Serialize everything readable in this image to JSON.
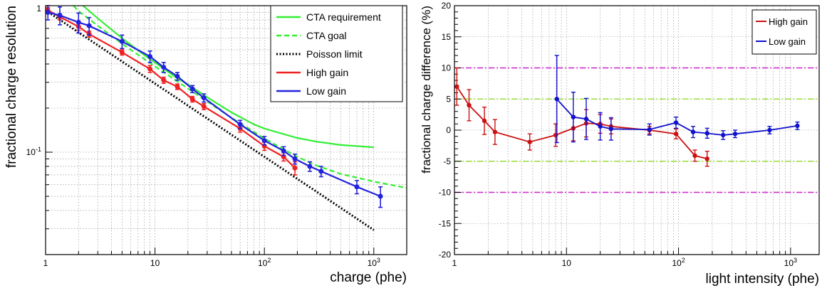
{
  "chart_data": [
    {
      "type": "line",
      "title": "",
      "xlabel": "charge (phe)",
      "ylabel": "fractional charge resolution",
      "xscale": "log",
      "yscale": "log",
      "xlim": [
        1,
        2000
      ],
      "ylim": [
        0.02,
        1
      ],
      "grid": true,
      "legend_position": "top-right",
      "x_tick_labels": [
        "1",
        "10",
        "10^2",
        "10^3"
      ],
      "y_tick_labels": [
        "10^-1",
        "1"
      ],
      "series": [
        {
          "name": "CTA requirement",
          "color": "#33ee33",
          "style": "solid",
          "x": [
            2.2,
            3,
            5,
            8,
            10,
            15,
            20,
            30,
            50,
            80,
            100,
            200,
            300,
            500,
            1000
          ],
          "y": [
            1.0,
            0.82,
            0.6,
            0.46,
            0.41,
            0.33,
            0.29,
            0.237,
            0.187,
            0.155,
            0.145,
            0.125,
            0.118,
            0.112,
            0.108
          ]
        },
        {
          "name": "CTA goal",
          "color": "#33ee33",
          "style": "dashed",
          "x": [
            1.8,
            2,
            3,
            5,
            10,
            20,
            30,
            50,
            100,
            200,
            300,
            500,
            1000,
            2000
          ],
          "y": [
            1.0,
            0.92,
            0.73,
            0.55,
            0.385,
            0.272,
            0.222,
            0.172,
            0.124,
            0.093,
            0.081,
            0.071,
            0.063,
            0.057
          ]
        },
        {
          "name": "Poisson limit",
          "color": "#000000",
          "style": "dotted",
          "x": [
            1,
            1000
          ],
          "y": [
            0.93,
            0.0294
          ]
        },
        {
          "name": "High gain",
          "color": "#ee2222",
          "style": "solid",
          "x": [
            1.05,
            1.35,
            2,
            2.5,
            5,
            9,
            12,
            16,
            22,
            28,
            60,
            100,
            150,
            190
          ],
          "y": [
            0.93,
            0.84,
            0.72,
            0.64,
            0.48,
            0.37,
            0.31,
            0.28,
            0.23,
            0.205,
            0.145,
            0.11,
            0.093,
            0.078
          ],
          "err": [
            0.04,
            0.04,
            0.04,
            0.03,
            0.02,
            0.02,
            0.015,
            0.012,
            0.01,
            0.01,
            0.008,
            0.007,
            0.006,
            0.008
          ]
        },
        {
          "name": "Low gain",
          "color": "#2222dd",
          "style": "solid",
          "x": [
            1.05,
            1.35,
            2,
            2.5,
            5,
            9,
            12,
            16,
            22,
            28,
            60,
            100,
            150,
            190,
            260,
            330,
            700,
            1150
          ],
          "y": [
            0.9,
            0.86,
            0.77,
            0.73,
            0.57,
            0.45,
            0.38,
            0.33,
            0.27,
            0.235,
            0.155,
            0.12,
            0.102,
            0.09,
            0.08,
            0.074,
            0.058,
            0.05
          ],
          "err": [
            0.1,
            0.12,
            0.12,
            0.1,
            0.06,
            0.04,
            0.03,
            0.02,
            0.015,
            0.015,
            0.01,
            0.008,
            0.007,
            0.007,
            0.006,
            0.006,
            0.006,
            0.008
          ]
        }
      ]
    },
    {
      "type": "line",
      "title": "",
      "xlabel": "light intensity (phe)",
      "ylabel": "fractional charge difference (%)",
      "xscale": "log",
      "yscale": "linear",
      "xlim": [
        1,
        1800
      ],
      "ylim": [
        -20,
        20
      ],
      "grid": true,
      "legend_position": "top-right",
      "x_tick_labels": [
        "1",
        "10",
        "10^2",
        "10^3"
      ],
      "y_ticks": [
        -20,
        -15,
        -10,
        -5,
        0,
        5,
        10,
        15,
        20
      ],
      "reference_lines": [
        {
          "y": 10,
          "color": "#cc22cc",
          "style": "dashdot"
        },
        {
          "y": -10,
          "color": "#cc22cc",
          "style": "dashdot"
        },
        {
          "y": 5,
          "color": "#99dd33",
          "style": "dashdot"
        },
        {
          "y": -5,
          "color": "#99dd33",
          "style": "dashdot"
        }
      ],
      "series": [
        {
          "name": "High gain",
          "color": "#cc1111",
          "style": "solid",
          "x": [
            1.05,
            1.35,
            1.85,
            2.3,
            4.7,
            8,
            11.5,
            15,
            20,
            25,
            55,
            95,
            140,
            180
          ],
          "y": [
            7,
            4,
            1.5,
            -0.3,
            -1.9,
            -0.8,
            0.3,
            1.1,
            1.0,
            0.6,
            0.0,
            -0.6,
            -4.1,
            -4.6
          ],
          "err": [
            3,
            2.5,
            2.2,
            2,
            1.3,
            1.8,
            2,
            2.2,
            1.5,
            1.2,
            0.6,
            0.8,
            0.9,
            1.2
          ]
        },
        {
          "name": "Low gain",
          "color": "#1111cc",
          "style": "solid",
          "x": [
            8.2,
            11.5,
            15,
            20,
            25,
            55,
            95,
            135,
            180,
            250,
            320,
            650,
            1150
          ],
          "y": [
            5.0,
            2.1,
            1.8,
            0.6,
            0.2,
            0.1,
            1.2,
            -0.3,
            -0.5,
            -0.8,
            -0.6,
            0.0,
            0.7
          ],
          "err": [
            7,
            4,
            3.3,
            2.2,
            1.8,
            0.9,
            0.9,
            0.9,
            0.8,
            0.7,
            0.6,
            0.6,
            0.6
          ]
        }
      ]
    }
  ]
}
